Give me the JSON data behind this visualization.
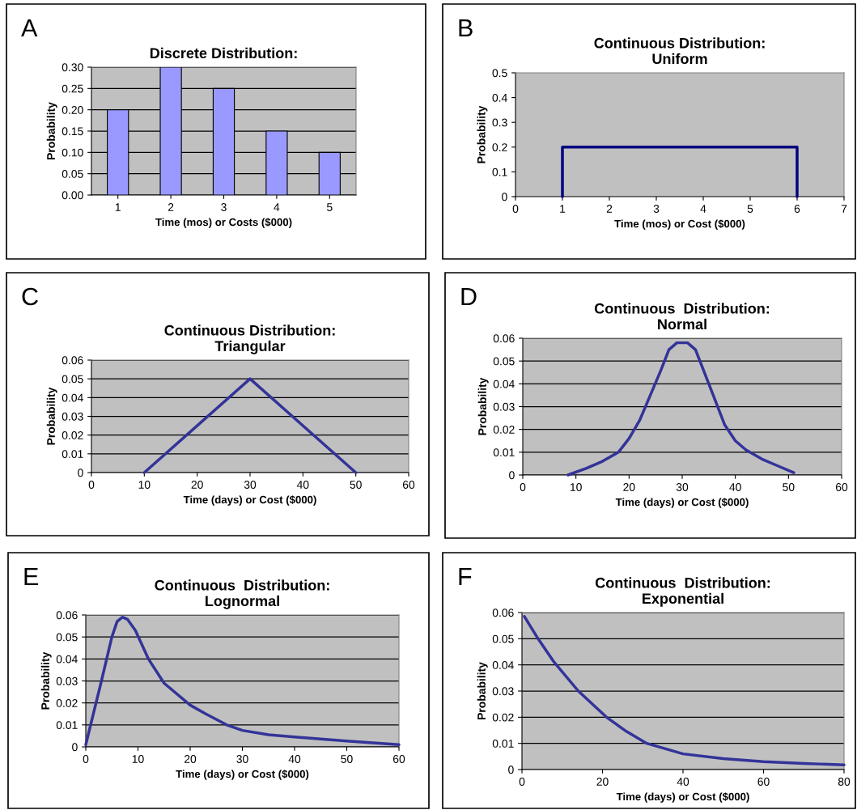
{
  "chart_data": [
    {
      "type": "bar",
      "title": "Discrete Distribution:",
      "xlabel": "Time (mos) or Costs ($000)",
      "ylabel": "Probability",
      "annotations": [
        "A"
      ],
      "categories": [
        "1",
        "2",
        "3",
        "4",
        "5"
      ],
      "values": [
        0.2,
        0.3,
        0.25,
        0.15,
        0.1
      ],
      "color": "#9999ff",
      "ylim": [
        0,
        0.3
      ],
      "yticks": [
        {
          "value": 0,
          "label": "0.00"
        },
        {
          "value": 0.05,
          "label": "0.05"
        },
        {
          "value": 0.1,
          "label": "0.10"
        },
        {
          "value": 0.15,
          "label": "0.15"
        },
        {
          "value": 0.2,
          "label": "0.20"
        },
        {
          "value": 0.25,
          "label": "0.25"
        },
        {
          "value": 0.3,
          "label": "0.30"
        }
      ],
      "grid": "y"
    },
    {
      "type": "line",
      "title": "Continuous Distribution:\nUniform",
      "xlabel": "Time (mos) or Cost ($000)",
      "ylabel": "Probability",
      "annotations": [
        "B"
      ],
      "x": [
        1,
        1,
        6,
        6
      ],
      "series": [
        {
          "color": "#000080",
          "values": [
            0,
            0.2,
            0.2,
            0
          ]
        }
      ],
      "xlim": [
        0,
        7
      ],
      "xticks": [
        0,
        1,
        2,
        3,
        4,
        5,
        6,
        7
      ],
      "ylim": [
        0,
        0.5
      ],
      "yticks": [
        0,
        0.1,
        0.2,
        0.3,
        0.4,
        0.5
      ],
      "grid": false
    },
    {
      "type": "line",
      "title": "Continuous Distribution:\nTriangular",
      "xlabel": "Time (days) or Cost ($000)",
      "ylabel": "Probability",
      "annotations": [
        "C"
      ],
      "x": [
        10,
        30,
        50
      ],
      "series": [
        {
          "color": "#333399",
          "values": [
            0,
            0.05,
            0
          ]
        }
      ],
      "xlim": [
        0,
        60
      ],
      "xticks": [
        0,
        10,
        20,
        30,
        40,
        50,
        60
      ],
      "ylim": [
        0,
        0.06
      ],
      "yticks": [
        0,
        0.01,
        0.02,
        0.03,
        0.04,
        0.05,
        0.06
      ],
      "grid": "y"
    },
    {
      "type": "line",
      "title": "Continuous  Distribution:\nNormal",
      "xlabel": "Time (days) or Cost ($000)",
      "ylabel": "Probability",
      "annotations": [
        "D"
      ],
      "x": [
        8.5,
        12,
        15,
        18,
        20,
        22,
        24,
        26,
        27.5,
        29,
        31,
        32.5,
        34,
        36,
        38,
        40,
        42,
        45,
        48,
        51
      ],
      "series": [
        {
          "color": "#333399",
          "values": [
            0,
            0.003,
            0.006,
            0.01,
            0.016,
            0.024,
            0.035,
            0.046,
            0.055,
            0.058,
            0.058,
            0.055,
            0.046,
            0.034,
            0.022,
            0.015,
            0.011,
            0.007,
            0.004,
            0.001
          ]
        }
      ],
      "xlim": [
        0,
        60
      ],
      "xticks": [
        0,
        10,
        20,
        30,
        40,
        50,
        60
      ],
      "ylim": [
        0,
        0.06
      ],
      "yticks": [
        0,
        0.01,
        0.02,
        0.03,
        0.04,
        0.05,
        0.06
      ],
      "grid": "y"
    },
    {
      "type": "line",
      "title": "Continuous  Distribution:\nLognormal",
      "xlabel": "Time (days) or Cost ($000)",
      "ylabel": "Probability",
      "annotations": [
        "E"
      ],
      "x": [
        0,
        3,
        5,
        6,
        7,
        8,
        9.5,
        12,
        15,
        20,
        23,
        27,
        30,
        35,
        40,
        50,
        60
      ],
      "series": [
        {
          "color": "#333399",
          "values": [
            0.001,
            0.03,
            0.05,
            0.057,
            0.059,
            0.058,
            0.053,
            0.04,
            0.029,
            0.019,
            0.015,
            0.01,
            0.0075,
            0.0055,
            0.0045,
            0.0027,
            0.001
          ]
        }
      ],
      "xlim": [
        0,
        60
      ],
      "xticks": [
        0,
        10,
        20,
        30,
        40,
        50,
        60
      ],
      "ylim": [
        0,
        0.06
      ],
      "yticks": [
        0,
        0.01,
        0.02,
        0.03,
        0.04,
        0.05,
        0.06
      ],
      "grid": "y"
    },
    {
      "type": "line",
      "title": "Continuous  Distribution:\nExponential",
      "xlabel": "Time (days) or Cost ($000)",
      "ylabel": "Probability",
      "annotations": [
        "F"
      ],
      "x": [
        0.6,
        4,
        8,
        14,
        21,
        26,
        31,
        40,
        50,
        60,
        70,
        80
      ],
      "series": [
        {
          "color": "#333399",
          "values": [
            0.0585,
            0.05,
            0.041,
            0.03,
            0.02,
            0.0145,
            0.01,
            0.006,
            0.0042,
            0.003,
            0.0023,
            0.0018
          ]
        }
      ],
      "xlim": [
        0,
        80
      ],
      "xticks": [
        0,
        20,
        40,
        60,
        80
      ],
      "ylim": [
        0,
        0.06
      ],
      "yticks": [
        0,
        0.01,
        0.02,
        0.03,
        0.04,
        0.05,
        0.06
      ],
      "grid": "y"
    }
  ]
}
